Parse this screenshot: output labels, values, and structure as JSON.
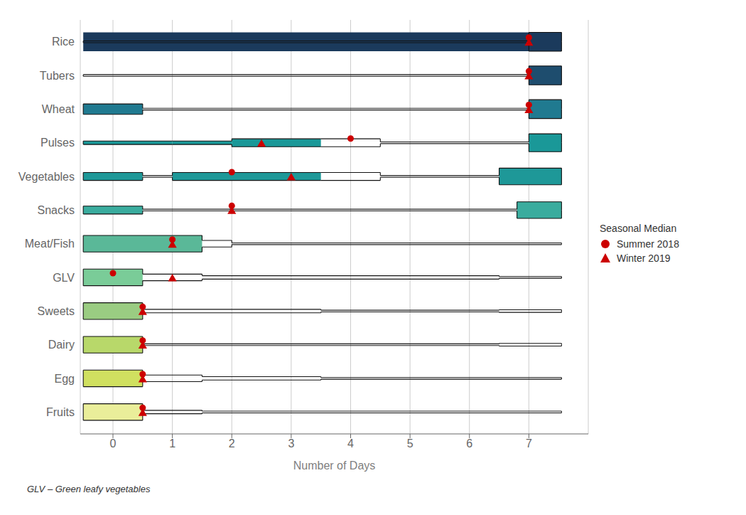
{
  "chart_data": {
    "type": "violin",
    "xlabel": "Number of Days",
    "footnote": "GLV – Green leafy vegetables",
    "categories": [
      "Rice",
      "Tubers",
      "Wheat",
      "Pulses",
      "Vegetables",
      "Snacks",
      "Meat/Fish",
      "GLV",
      "Sweets",
      "Dairy",
      "Egg",
      "Fruits"
    ],
    "colors": [
      "#1b3a5c",
      "#1e4d6e",
      "#207a90",
      "#1a9898",
      "#1e9898",
      "#3aac9e",
      "#5ab898",
      "#7acc98",
      "#9acc82",
      "#b8d86a",
      "#d0e060",
      "#eaee9a"
    ],
    "xlim": [
      -0.55,
      8.0
    ],
    "xticks": [
      0,
      1,
      2,
      3,
      4,
      5,
      6,
      7
    ],
    "grid": true,
    "legend": "right",
    "legend_title": "Seasonal Median",
    "series": [
      {
        "name": "Summer 2018",
        "color": "#cc0000",
        "marker": "circle",
        "values": [
          7.0,
          7.0,
          7.0,
          4.0,
          2.0,
          2.0,
          1.0,
          0.0,
          0.5,
          0.5,
          0.5,
          0.5
        ]
      },
      {
        "name": "Winter 2019",
        "color": "#cc0000",
        "marker": "triangle",
        "values": [
          7.0,
          7.0,
          7.0,
          2.5,
          3.0,
          2.0,
          1.0,
          1.0,
          0.5,
          0.5,
          0.5,
          0.5
        ]
      }
    ],
    "steps": {
      "color": "#111111",
      "rows": [
        {
          "filled": [
            [
              -0.5,
              7.55,
              1.0
            ]
          ],
          "outline_x": [
            -0.5,
            7.0,
            7.55
          ],
          "outline_h": [
            0.09,
            1.0,
            0.0
          ]
        },
        {
          "filled": [
            [
              7.0,
              7.55,
              1.0
            ]
          ],
          "outline_x": [
            -0.5,
            7.0,
            7.55
          ],
          "outline_h": [
            0.09,
            1.0,
            0.0
          ]
        },
        {
          "filled": [
            [
              -0.5,
              0.5,
              0.55
            ],
            [
              7.0,
              7.55,
              1.0
            ]
          ],
          "outline_x": [
            -0.5,
            0.5,
            7.0,
            7.55
          ],
          "outline_h": [
            0.55,
            0.09,
            1.0,
            0.0
          ]
        },
        {
          "filled": [
            [
              -0.5,
              1.0,
              0.18
            ],
            [
              1.0,
              2.0,
              0.18
            ],
            [
              2.0,
              3.5,
              0.42
            ],
            [
              7.0,
              7.55,
              0.95
            ]
          ],
          "outline_x": [
            -0.5,
            1.0,
            2.0,
            3.5,
            4.5,
            7.0,
            7.55
          ],
          "outline_h": [
            0.18,
            0.18,
            0.42,
            0.42,
            0.09,
            0.95,
            0.0
          ]
        },
        {
          "filled": [
            [
              -0.5,
              0.5,
              0.42
            ],
            [
              1.0,
              3.5,
              0.42
            ],
            [
              6.5,
              7.55,
              0.88
            ]
          ],
          "outline_x": [
            -0.5,
            0.5,
            1.0,
            3.5,
            4.5,
            6.5,
            7.55
          ],
          "outline_h": [
            0.42,
            0.09,
            0.42,
            0.42,
            0.09,
            0.88,
            0.0
          ]
        },
        {
          "filled": [
            [
              -0.5,
              0.5,
              0.42
            ],
            [
              6.8,
              7.55,
              0.88
            ]
          ],
          "outline_x": [
            -0.5,
            0.5,
            6.8,
            7.55
          ],
          "outline_h": [
            0.42,
            0.09,
            0.88,
            0.0
          ]
        },
        {
          "filled": [
            [
              -0.5,
              1.5,
              0.88
            ]
          ],
          "outline_x": [
            -0.5,
            1.5,
            2.0,
            7.55
          ],
          "outline_h": [
            0.88,
            0.35,
            0.09,
            0.0
          ]
        },
        {
          "filled": [
            [
              -0.5,
              0.5,
              0.88
            ]
          ],
          "outline_x": [
            -0.5,
            0.5,
            1.5,
            6.5,
            7.55
          ],
          "outline_h": [
            0.88,
            0.35,
            0.18,
            0.09,
            0.0
          ]
        },
        {
          "filled": [
            [
              -0.5,
              0.5,
              0.88
            ]
          ],
          "outline_x": [
            -0.5,
            0.5,
            3.5,
            6.5,
            7.55
          ],
          "outline_h": [
            0.88,
            0.18,
            0.09,
            0.14,
            0.0
          ]
        },
        {
          "filled": [
            [
              -0.5,
              0.5,
              0.88
            ]
          ],
          "outline_x": [
            -0.5,
            0.5,
            6.5,
            7.55
          ],
          "outline_h": [
            0.88,
            0.09,
            0.14,
            0.0
          ]
        },
        {
          "filled": [
            [
              -0.5,
              0.5,
              0.88
            ]
          ],
          "outline_x": [
            -0.5,
            0.5,
            1.5,
            3.5,
            7.55
          ],
          "outline_h": [
            0.88,
            0.35,
            0.18,
            0.09,
            0.0
          ]
        },
        {
          "filled": [
            [
              -0.5,
              0.5,
              0.88
            ]
          ],
          "outline_x": [
            -0.5,
            0.5,
            1.5,
            7.55
          ],
          "outline_h": [
            0.88,
            0.18,
            0.09,
            0.0
          ]
        }
      ]
    }
  }
}
